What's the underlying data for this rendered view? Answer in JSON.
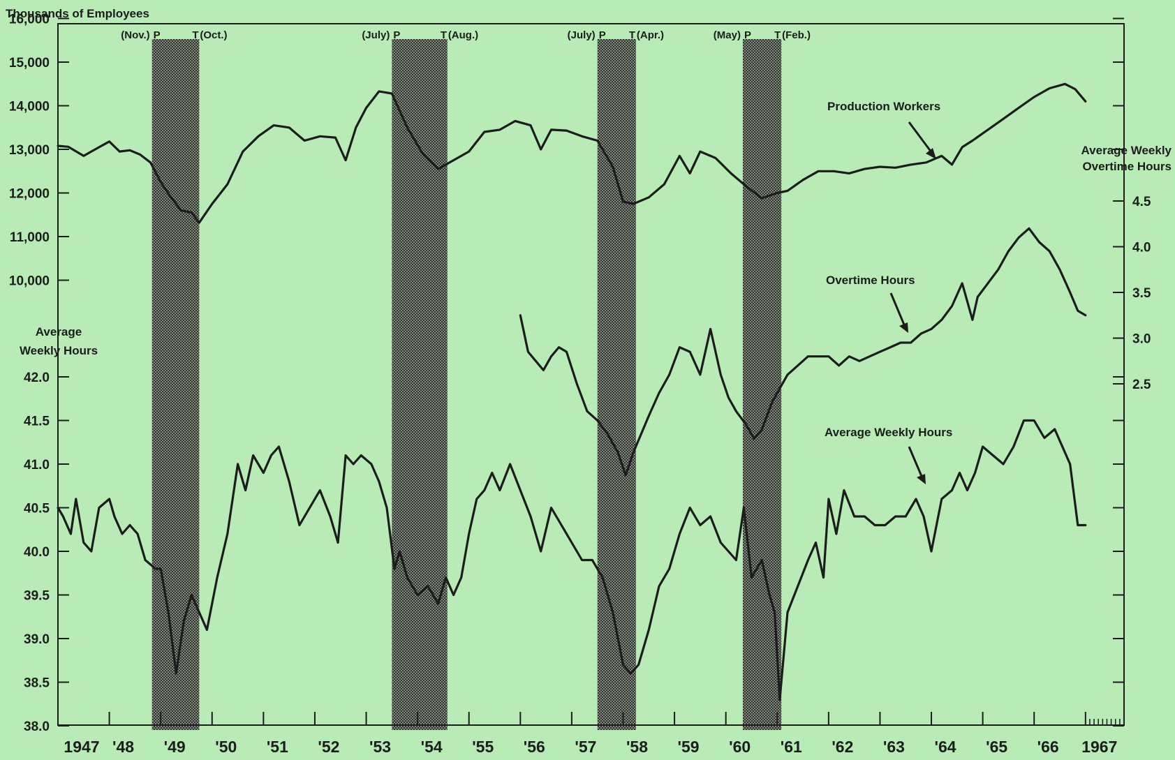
{
  "chart_data": {
    "type": "line",
    "left_axis_title": "Thousands of Employees",
    "left_axis_title_2_line1": "Average",
    "left_axis_title_2_line2": "Weekly Hours",
    "right_axis_title_line1": "Average Weekly",
    "right_axis_title_line2": "Overtime Hours",
    "employee_ticks": [
      "16,000",
      "15,000",
      "14,000",
      "13,000",
      "12,000",
      "11,000",
      "10,000"
    ],
    "hours_ticks": [
      "42.0",
      "41.5",
      "41.0",
      "40.5",
      "40.0",
      "39.5",
      "39.0",
      "38.5",
      "38.0"
    ],
    "overtime_ticks": [
      "4.5",
      "4.0",
      "3.5",
      "3.0",
      "2.5"
    ],
    "years": [
      "1947",
      "'48",
      "'49",
      "'50",
      "'51",
      "'52",
      "'53",
      "'54",
      "'55",
      "'56",
      "'57",
      "'58",
      "'59",
      "'60",
      "'61",
      "'62",
      "'63",
      "'64",
      "'65",
      "'66",
      "1967"
    ],
    "recessions": [
      {
        "peak_label": "(Nov.)",
        "p": "P",
        "t": "T",
        "trough_label": "(Oct.)",
        "start": 1948.83,
        "end": 1949.75
      },
      {
        "peak_label": "(July)",
        "p": "P",
        "t": "T",
        "trough_label": "(Aug.)",
        "start": 1953.5,
        "end": 1954.58
      },
      {
        "peak_label": "(July)",
        "p": "P",
        "t": "T",
        "trough_label": "(Apr.)",
        "start": 1957.5,
        "end": 1958.25
      },
      {
        "peak_label": "(May)",
        "p": "P",
        "t": "T",
        "trough_label": "(Feb.)",
        "start": 1960.33,
        "end": 1961.08
      }
    ],
    "series": [
      {
        "name": "Production Workers",
        "unit": "thousands",
        "x": [
          1947.0,
          1947.2,
          1947.5,
          1947.8,
          1948.0,
          1948.2,
          1948.4,
          1948.6,
          1948.8,
          1949.0,
          1949.2,
          1949.4,
          1949.6,
          1949.75,
          1950.0,
          1950.3,
          1950.6,
          1950.9,
          1951.2,
          1951.5,
          1951.8,
          1952.1,
          1952.4,
          1952.6,
          1952.8,
          1953.0,
          1953.25,
          1953.5,
          1953.8,
          1954.1,
          1954.4,
          1954.7,
          1955.0,
          1955.3,
          1955.6,
          1955.9,
          1956.2,
          1956.4,
          1956.6,
          1956.9,
          1957.2,
          1957.5,
          1957.8,
          1958.0,
          1958.2,
          1958.5,
          1958.8,
          1959.1,
          1959.3,
          1959.5,
          1959.8,
          1960.1,
          1960.4,
          1960.7,
          1961.0,
          1961.2,
          1961.5,
          1961.8,
          1962.1,
          1962.4,
          1962.7,
          1963.0,
          1963.3,
          1963.6,
          1963.9,
          1964.2,
          1964.4,
          1964.6,
          1964.8,
          1965.1,
          1965.4,
          1965.7,
          1966.0,
          1966.3,
          1966.6,
          1966.8,
          1967.0
        ],
        "y": [
          13080,
          13060,
          12850,
          13050,
          13180,
          12950,
          12980,
          12880,
          12700,
          12250,
          11900,
          11600,
          11550,
          11320,
          11750,
          12200,
          12950,
          13300,
          13550,
          13500,
          13200,
          13300,
          13270,
          12750,
          13500,
          13950,
          14330,
          14280,
          13500,
          12900,
          12550,
          12750,
          12950,
          13400,
          13450,
          13650,
          13550,
          13000,
          13450,
          13430,
          13300,
          13200,
          12600,
          11800,
          11750,
          11900,
          12200,
          12850,
          12450,
          12950,
          12800,
          12450,
          12150,
          11880,
          12000,
          12050,
          12300,
          12500,
          12500,
          12450,
          12550,
          12600,
          12580,
          12650,
          12700,
          12850,
          12650,
          13050,
          13200,
          13450,
          13700,
          13950,
          14200,
          14400,
          14500,
          14380,
          14100
        ]
      },
      {
        "name": "Overtime Hours",
        "unit": "hours",
        "x": [
          1956.0,
          1956.15,
          1956.3,
          1956.45,
          1956.6,
          1956.75,
          1956.9,
          1957.1,
          1957.3,
          1957.5,
          1957.7,
          1957.9,
          1958.05,
          1958.2,
          1958.35,
          1958.5,
          1958.7,
          1958.9,
          1959.1,
          1959.3,
          1959.5,
          1959.7,
          1959.9,
          1960.05,
          1960.2,
          1960.4,
          1960.55,
          1960.7,
          1960.9,
          1961.05,
          1961.2,
          1961.4,
          1961.6,
          1961.8,
          1962.0,
          1962.2,
          1962.4,
          1962.6,
          1962.8,
          1963.0,
          1963.2,
          1963.4,
          1963.6,
          1963.8,
          1964.0,
          1964.2,
          1964.4,
          1964.6,
          1964.8,
          1964.9,
          1965.1,
          1965.3,
          1965.5,
          1965.7,
          1965.9,
          1966.1,
          1966.3,
          1966.5,
          1966.7,
          1966.85,
          1967.0
        ],
        "y": [
          3.25,
          2.85,
          2.75,
          2.65,
          2.8,
          2.9,
          2.85,
          2.5,
          2.2,
          2.1,
          1.95,
          1.75,
          1.5,
          1.75,
          1.95,
          2.15,
          2.4,
          2.6,
          2.9,
          2.85,
          2.6,
          3.1,
          2.6,
          2.35,
          2.2,
          2.05,
          1.9,
          2.0,
          2.3,
          2.45,
          2.6,
          2.7,
          2.8,
          2.8,
          2.8,
          2.7,
          2.8,
          2.75,
          2.8,
          2.85,
          2.9,
          2.95,
          2.95,
          3.05,
          3.1,
          3.2,
          3.35,
          3.6,
          3.2,
          3.45,
          3.6,
          3.75,
          3.95,
          4.1,
          4.2,
          4.05,
          3.95,
          3.75,
          3.5,
          3.3,
          3.25
        ]
      },
      {
        "name": "Average Weekly Hours",
        "unit": "hours",
        "x": [
          1947.0,
          1947.1,
          1947.25,
          1947.35,
          1947.5,
          1947.65,
          1947.8,
          1948.0,
          1948.1,
          1948.25,
          1948.4,
          1948.55,
          1948.7,
          1948.9,
          1949.0,
          1949.15,
          1949.3,
          1949.45,
          1949.6,
          1949.75,
          1949.9,
          1950.1,
          1950.3,
          1950.5,
          1950.65,
          1950.8,
          1951.0,
          1951.15,
          1951.3,
          1951.5,
          1951.7,
          1951.9,
          1952.1,
          1952.3,
          1952.45,
          1952.6,
          1952.75,
          1952.9,
          1953.1,
          1953.25,
          1953.4,
          1953.55,
          1953.65,
          1953.8,
          1954.0,
          1954.2,
          1954.4,
          1954.55,
          1954.7,
          1954.85,
          1955.0,
          1955.15,
          1955.3,
          1955.45,
          1955.6,
          1955.8,
          1956.0,
          1956.2,
          1956.4,
          1956.6,
          1956.8,
          1957.0,
          1957.2,
          1957.4,
          1957.6,
          1957.8,
          1958.0,
          1958.15,
          1958.3,
          1958.5,
          1958.7,
          1958.9,
          1959.1,
          1959.3,
          1959.5,
          1959.7,
          1959.9,
          1960.05,
          1960.2,
          1960.35,
          1960.5,
          1960.7,
          1960.85,
          1960.95,
          1961.05,
          1961.2,
          1961.4,
          1961.6,
          1961.75,
          1961.9,
          1962.0,
          1962.15,
          1962.3,
          1962.5,
          1962.7,
          1962.9,
          1963.1,
          1963.3,
          1963.5,
          1963.7,
          1963.85,
          1964.0,
          1964.2,
          1964.4,
          1964.55,
          1964.7,
          1964.85,
          1965.0,
          1965.2,
          1965.4,
          1965.6,
          1965.8,
          1966.0,
          1966.2,
          1966.4,
          1966.55,
          1966.7,
          1966.85,
          1967.0
        ],
        "y": [
          40.5,
          40.4,
          40.2,
          40.6,
          40.1,
          40.0,
          40.5,
          40.6,
          40.4,
          40.2,
          40.3,
          40.2,
          39.9,
          39.8,
          39.8,
          39.3,
          38.6,
          39.2,
          39.5,
          39.3,
          39.1,
          39.7,
          40.2,
          41.0,
          40.7,
          41.1,
          40.9,
          41.1,
          41.2,
          40.8,
          40.3,
          40.5,
          40.7,
          40.4,
          40.1,
          41.1,
          41.0,
          41.1,
          41.0,
          40.8,
          40.5,
          39.8,
          40.0,
          39.7,
          39.5,
          39.6,
          39.4,
          39.7,
          39.5,
          39.7,
          40.2,
          40.6,
          40.7,
          40.9,
          40.7,
          41.0,
          40.7,
          40.4,
          40.0,
          40.5,
          40.3,
          40.1,
          39.9,
          39.9,
          39.7,
          39.3,
          38.7,
          38.6,
          38.7,
          39.1,
          39.6,
          39.8,
          40.2,
          40.5,
          40.3,
          40.4,
          40.1,
          40.0,
          39.9,
          40.5,
          39.7,
          39.9,
          39.5,
          39.3,
          38.3,
          39.3,
          39.6,
          39.9,
          40.1,
          39.7,
          40.6,
          40.2,
          40.7,
          40.4,
          40.4,
          40.3,
          40.3,
          40.4,
          40.4,
          40.6,
          40.4,
          40.0,
          40.6,
          40.7,
          40.9,
          40.7,
          40.9,
          41.2,
          41.1,
          41.0,
          41.2,
          41.5,
          41.5,
          41.3,
          41.4,
          41.2,
          41.0,
          40.3,
          40.3
        ]
      }
    ],
    "annotations": [
      "Production Workers",
      "Overtime Hours",
      "Average Weekly Hours"
    ]
  },
  "colors": {
    "background": "#b8ebb5",
    "ink": "#1c1c1c",
    "recession_band": "#6f776c"
  }
}
